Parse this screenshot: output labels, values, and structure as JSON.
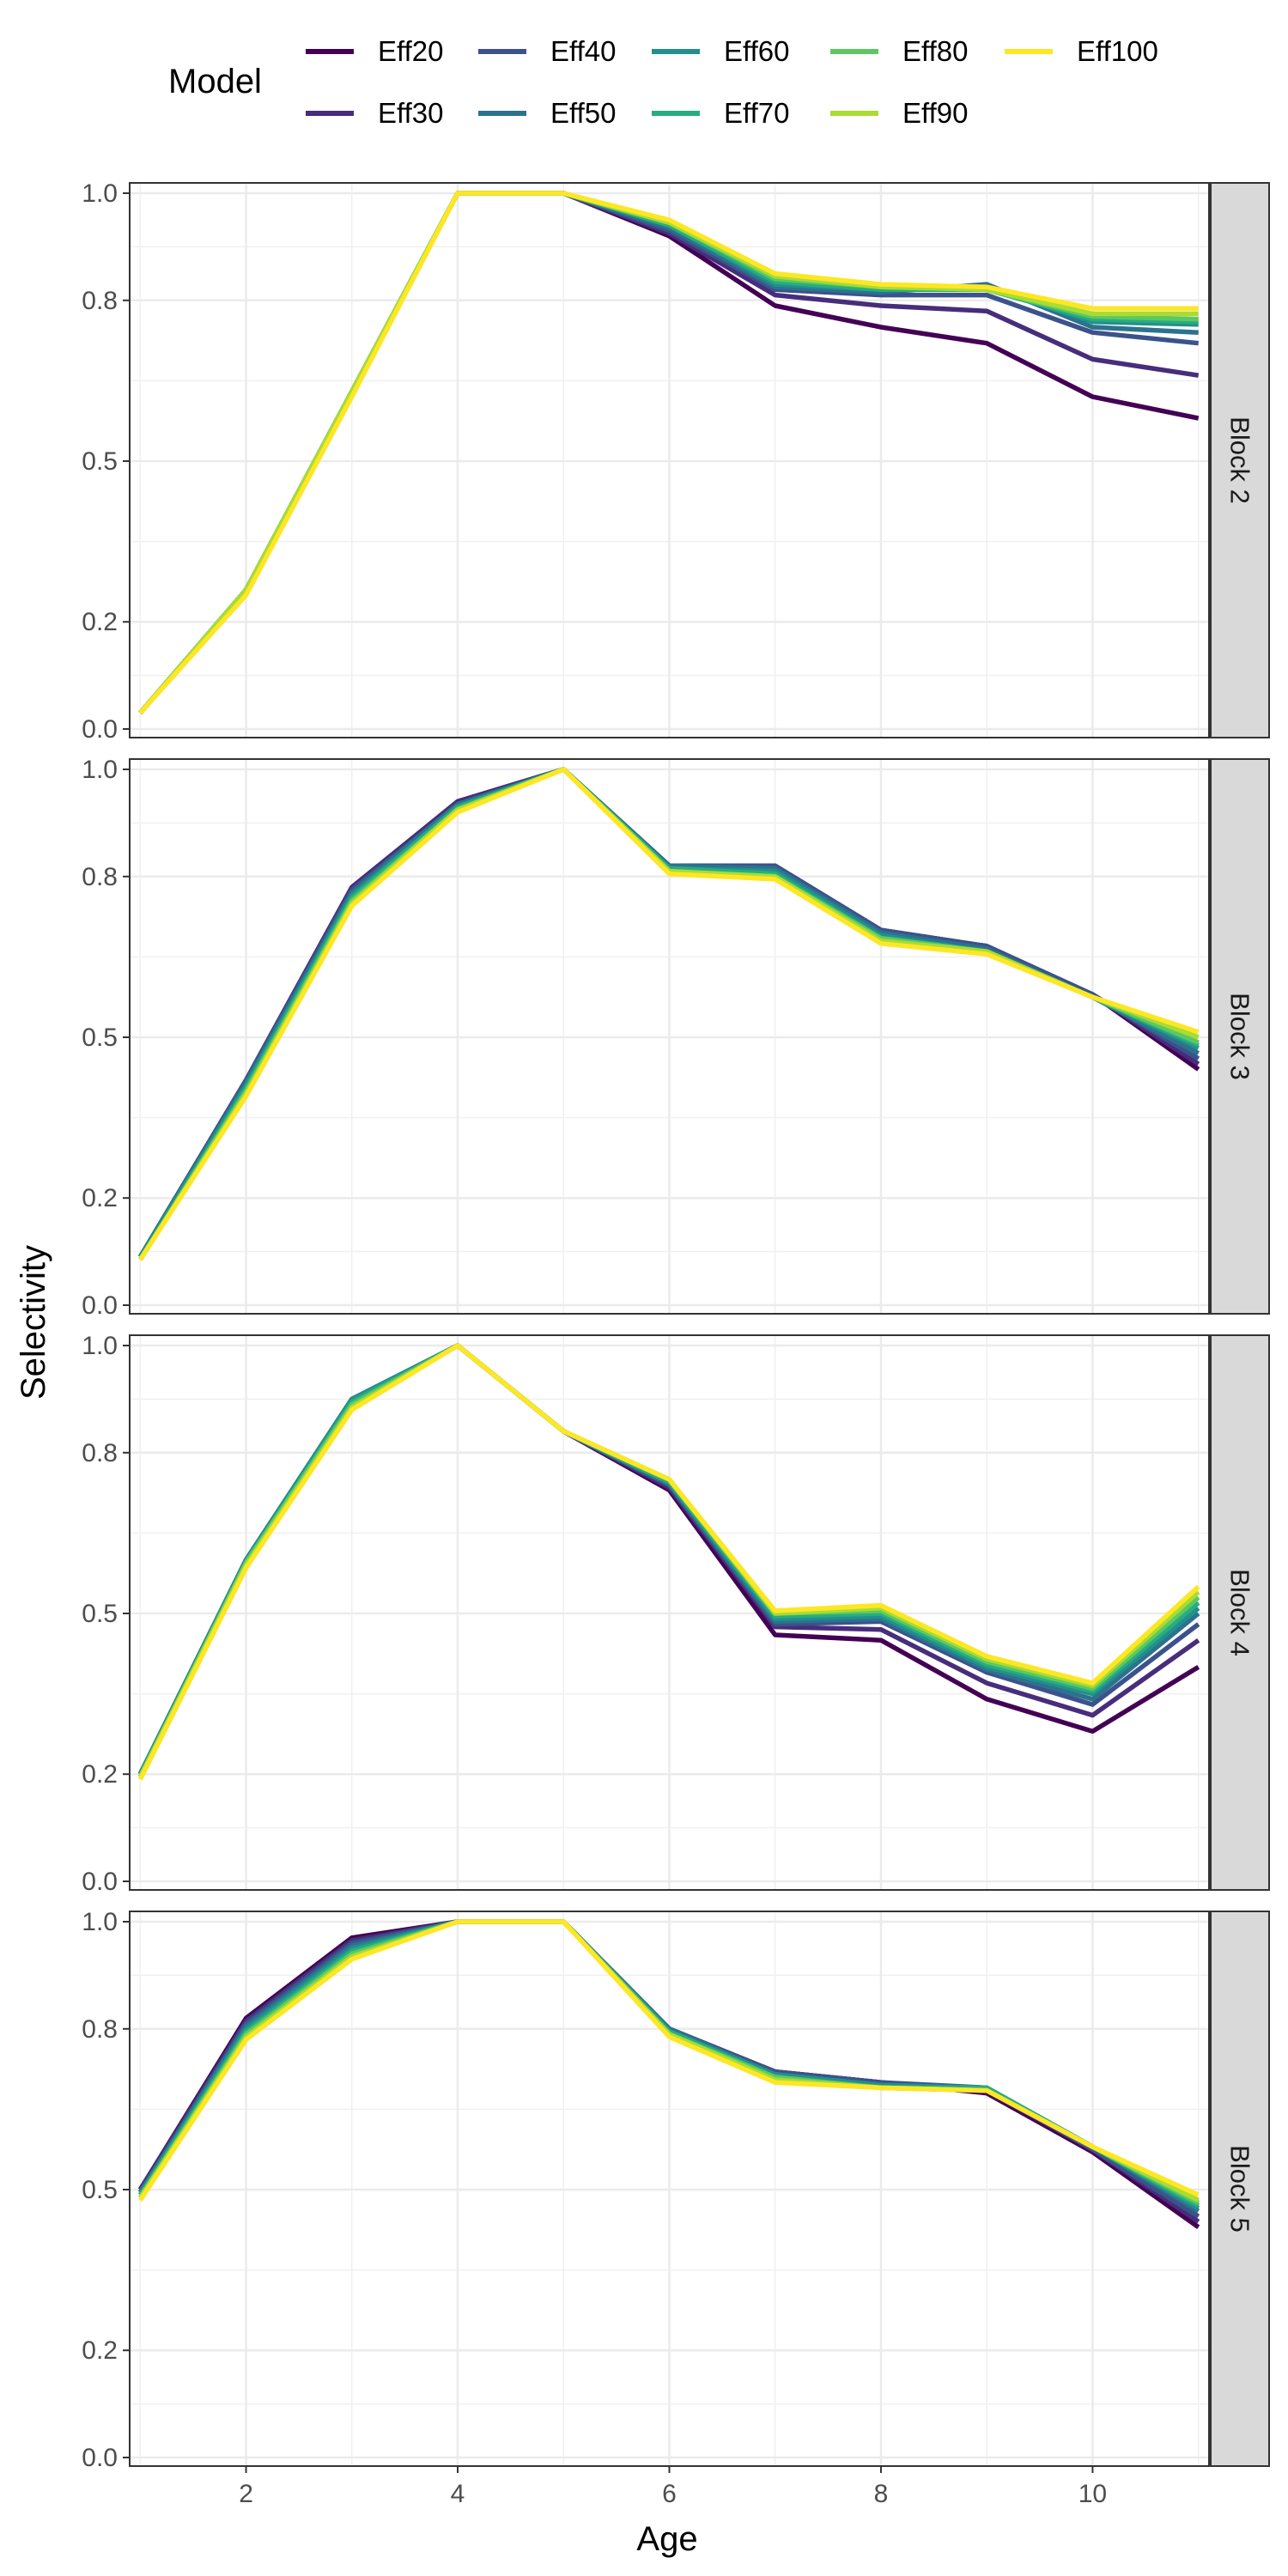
{
  "chart_data": {
    "type": "line",
    "xlabel": "Age",
    "ylabel": "Selectivity",
    "x": [
      1,
      2,
      3,
      4,
      5,
      6,
      7,
      8,
      9,
      10,
      11
    ],
    "xlim": [
      0.9,
      11.1
    ],
    "ylim": [
      0,
      1
    ],
    "x_ticks": [
      2,
      4,
      6,
      8,
      10
    ],
    "y_ticks": [
      0.0,
      0.2,
      0.5,
      0.8,
      1.0
    ],
    "y_tick_labels": [
      "0.0",
      "0.2",
      "0.5",
      "0.8",
      "1.0"
    ],
    "grid": true,
    "legend": {
      "title": "Model",
      "position": "top",
      "entries": [
        "Eff20",
        "Eff30",
        "Eff40",
        "Eff50",
        "Eff60",
        "Eff70",
        "Eff80",
        "Eff90",
        "Eff100"
      ]
    },
    "series_colors": [
      "#440154",
      "#472D7B",
      "#3B528B",
      "#2C728E",
      "#21908C",
      "#27AD81",
      "#5DC863",
      "#AADC32",
      "#FDE725"
    ],
    "panels": [
      {
        "strip": "Block 2",
        "series": [
          {
            "name": "Eff20",
            "values": [
              0.03,
              0.26,
              0.63,
              1.0,
              1.0,
              0.92,
              0.79,
              0.75,
              0.72,
              0.62,
              0.58
            ]
          },
          {
            "name": "Eff30",
            "values": [
              0.03,
              0.26,
              0.63,
              1.0,
              1.0,
              0.925,
              0.81,
              0.79,
              0.78,
              0.69,
              0.66
            ]
          },
          {
            "name": "Eff40",
            "values": [
              0.03,
              0.26,
              0.63,
              1.0,
              1.0,
              0.93,
              0.82,
              0.81,
              0.81,
              0.74,
              0.72
            ]
          },
          {
            "name": "Eff50",
            "values": [
              0.03,
              0.26,
              0.63,
              1.0,
              1.0,
              0.935,
              0.825,
              0.815,
              0.83,
              0.75,
              0.74
            ]
          },
          {
            "name": "Eff60",
            "values": [
              0.03,
              0.26,
              0.63,
              1.0,
              1.0,
              0.94,
              0.83,
              0.82,
              0.825,
              0.76,
              0.755
            ]
          },
          {
            "name": "Eff70",
            "values": [
              0.03,
              0.26,
              0.63,
              1.0,
              1.0,
              0.94,
              0.835,
              0.82,
              0.82,
              0.765,
              0.76
            ]
          },
          {
            "name": "Eff80",
            "values": [
              0.03,
              0.26,
              0.63,
              1.0,
              1.0,
              0.945,
              0.84,
              0.825,
              0.82,
              0.77,
              0.765
            ]
          },
          {
            "name": "Eff90",
            "values": [
              0.03,
              0.26,
              0.63,
              1.0,
              1.0,
              0.945,
              0.845,
              0.825,
              0.82,
              0.775,
              0.775
            ]
          },
          {
            "name": "Eff100",
            "values": [
              0.03,
              0.25,
              0.62,
              1.0,
              1.0,
              0.95,
              0.85,
              0.83,
              0.825,
              0.785,
              0.785
            ]
          }
        ]
      },
      {
        "strip": "Block 3",
        "series": [
          {
            "name": "Eff20",
            "values": [
              0.09,
              0.42,
              0.78,
              0.94,
              1.0,
              0.82,
              0.82,
              0.7,
              0.67,
              0.58,
              0.44
            ]
          },
          {
            "name": "Eff30",
            "values": [
              0.09,
              0.42,
              0.78,
              0.94,
              1.0,
              0.82,
              0.82,
              0.7,
              0.67,
              0.58,
              0.45
            ]
          },
          {
            "name": "Eff40",
            "values": [
              0.09,
              0.42,
              0.775,
              0.935,
              1.0,
              0.82,
              0.82,
              0.7,
              0.67,
              0.58,
              0.46
            ]
          },
          {
            "name": "Eff50",
            "values": [
              0.09,
              0.415,
              0.77,
              0.935,
              1.0,
              0.82,
              0.815,
              0.695,
              0.665,
              0.575,
              0.47
            ]
          },
          {
            "name": "Eff60",
            "values": [
              0.09,
              0.41,
              0.765,
              0.93,
              1.0,
              0.815,
              0.81,
              0.69,
              0.66,
              0.575,
              0.48
            ]
          },
          {
            "name": "Eff70",
            "values": [
              0.085,
              0.405,
              0.76,
              0.93,
              1.0,
              0.815,
              0.805,
              0.685,
              0.66,
              0.575,
              0.485
            ]
          },
          {
            "name": "Eff80",
            "values": [
              0.085,
              0.4,
              0.755,
              0.925,
              1.0,
              0.81,
              0.8,
              0.685,
              0.66,
              0.575,
              0.49
            ]
          },
          {
            "name": "Eff90",
            "values": [
              0.085,
              0.395,
              0.75,
              0.925,
              1.0,
              0.81,
              0.8,
              0.68,
              0.66,
              0.575,
              0.5
            ]
          },
          {
            "name": "Eff100",
            "values": [
              0.085,
              0.39,
              0.745,
              0.92,
              1.0,
              0.805,
              0.795,
              0.675,
              0.655,
              0.575,
              0.51
            ]
          }
        ]
      },
      {
        "strip": "Block 4",
        "series": [
          {
            "name": "Eff20",
            "values": [
              0.2,
              0.6,
              0.9,
              1.0,
              0.84,
              0.73,
              0.46,
              0.45,
              0.34,
              0.28,
              0.4
            ]
          },
          {
            "name": "Eff30",
            "values": [
              0.2,
              0.6,
              0.9,
              1.0,
              0.84,
              0.735,
              0.475,
              0.47,
              0.37,
              0.31,
              0.45
            ]
          },
          {
            "name": "Eff40",
            "values": [
              0.2,
              0.6,
              0.9,
              1.0,
              0.84,
              0.74,
              0.48,
              0.485,
              0.39,
              0.33,
              0.48
            ]
          },
          {
            "name": "Eff50",
            "values": [
              0.2,
              0.6,
              0.9,
              1.0,
              0.84,
              0.74,
              0.485,
              0.49,
              0.395,
              0.34,
              0.5
            ]
          },
          {
            "name": "Eff60",
            "values": [
              0.2,
              0.6,
              0.9,
              1.0,
              0.84,
              0.745,
              0.49,
              0.495,
              0.4,
              0.35,
              0.51
            ]
          },
          {
            "name": "Eff70",
            "values": [
              0.195,
              0.595,
              0.895,
              1.0,
              0.84,
              0.745,
              0.495,
              0.5,
              0.405,
              0.355,
              0.52
            ]
          },
          {
            "name": "Eff80",
            "values": [
              0.195,
              0.595,
              0.89,
              1.0,
              0.84,
              0.75,
              0.5,
              0.505,
              0.41,
              0.36,
              0.53
            ]
          },
          {
            "name": "Eff90",
            "values": [
              0.195,
              0.59,
              0.885,
              1.0,
              0.84,
              0.75,
              0.5,
              0.51,
              0.415,
              0.365,
              0.54
            ]
          },
          {
            "name": "Eff100",
            "values": [
              0.19,
              0.585,
              0.88,
              1.0,
              0.84,
              0.75,
              0.505,
              0.515,
              0.42,
              0.37,
              0.55
            ]
          }
        ]
      },
      {
        "strip": "Block 5",
        "series": [
          {
            "name": "Eff20",
            "values": [
              0.5,
              0.82,
              0.97,
              1.0,
              1.0,
              0.8,
              0.72,
              0.7,
              0.68,
              0.57,
              0.43
            ]
          },
          {
            "name": "Eff30",
            "values": [
              0.5,
              0.815,
              0.965,
              1.0,
              1.0,
              0.8,
              0.72,
              0.7,
              0.685,
              0.575,
              0.44
            ]
          },
          {
            "name": "Eff40",
            "values": [
              0.495,
              0.81,
              0.96,
              1.0,
              1.0,
              0.8,
              0.72,
              0.7,
              0.69,
              0.575,
              0.45
            ]
          },
          {
            "name": "Eff50",
            "values": [
              0.495,
              0.805,
              0.955,
              1.0,
              1.0,
              0.8,
              0.715,
              0.695,
              0.69,
              0.58,
              0.46
            ]
          },
          {
            "name": "Eff60",
            "values": [
              0.49,
              0.8,
              0.95,
              1.0,
              1.0,
              0.795,
              0.715,
              0.695,
              0.69,
              0.58,
              0.465
            ]
          },
          {
            "name": "Eff70",
            "values": [
              0.49,
              0.795,
              0.945,
              1.0,
              1.0,
              0.795,
              0.71,
              0.69,
              0.69,
              0.58,
              0.47
            ]
          },
          {
            "name": "Eff80",
            "values": [
              0.485,
              0.79,
              0.94,
              1.0,
              1.0,
              0.79,
              0.71,
              0.69,
              0.685,
              0.58,
              0.475
            ]
          },
          {
            "name": "Eff90",
            "values": [
              0.485,
              0.785,
              0.935,
              1.0,
              1.0,
              0.79,
              0.705,
              0.69,
              0.685,
              0.58,
              0.48
            ]
          },
          {
            "name": "Eff100",
            "values": [
              0.48,
              0.78,
              0.93,
              1.0,
              1.0,
              0.785,
              0.7,
              0.69,
              0.685,
              0.58,
              0.49
            ]
          }
        ]
      }
    ]
  }
}
